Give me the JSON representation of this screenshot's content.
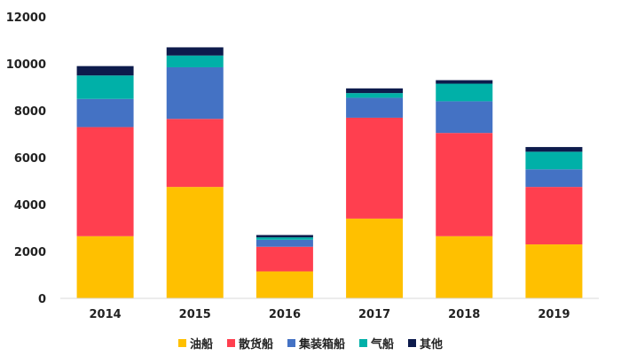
{
  "chart_data": {
    "type": "bar",
    "stacked": true,
    "categories": [
      "2014",
      "2015",
      "2016",
      "2017",
      "2018",
      "2019"
    ],
    "series": [
      {
        "name": "油船",
        "color": "#FFC000",
        "values": [
          2650,
          4750,
          1150,
          3400,
          2650,
          2300
        ]
      },
      {
        "name": "散货船",
        "color": "#FF3F4F",
        "values": [
          4650,
          2900,
          1050,
          4300,
          4400,
          2450
        ]
      },
      {
        "name": "集装箱船",
        "color": "#4472C4",
        "values": [
          1200,
          2200,
          300,
          850,
          1350,
          750
        ]
      },
      {
        "name": "气船",
        "color": "#00B0A8",
        "values": [
          1000,
          500,
          100,
          200,
          750,
          750
        ]
      },
      {
        "name": "其他",
        "color": "#0D1B4C",
        "values": [
          400,
          350,
          100,
          200,
          150,
          200
        ]
      }
    ],
    "ylim": [
      0,
      12000
    ],
    "yticks": [
      0,
      2000,
      4000,
      6000,
      8000,
      10000,
      12000
    ],
    "grid": false,
    "legend_position": "bottom"
  }
}
